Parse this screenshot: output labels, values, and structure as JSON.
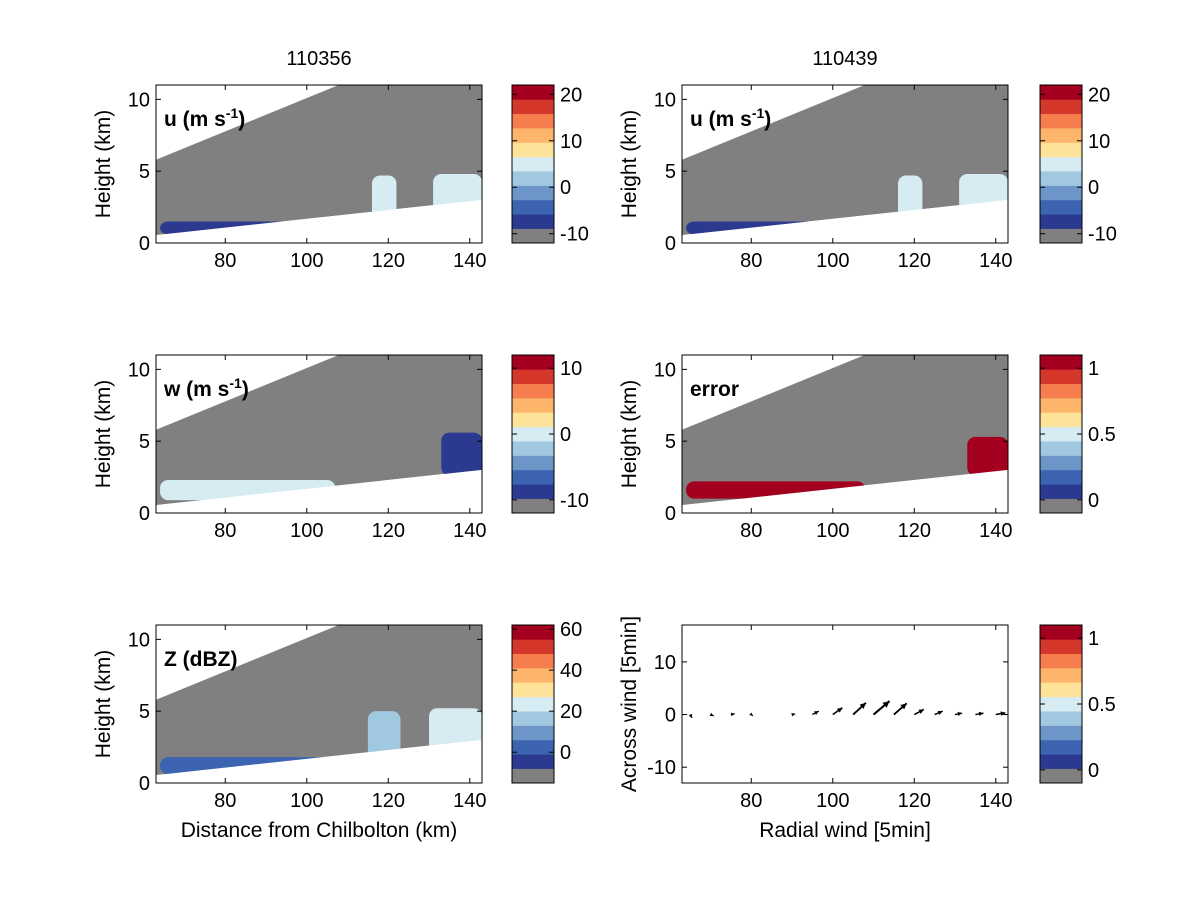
{
  "figure": {
    "titles": [
      "110356",
      "110439"
    ]
  },
  "colors": {
    "scale": [
      "#808080",
      "#2b3a8f",
      "#3d64b0",
      "#6c96c7",
      "#a0c8e0",
      "#d6ebf2",
      "#fde39a",
      "#fdb46b",
      "#f57d4e",
      "#d6372b",
      "#a3001f"
    ],
    "gray_region": "#808080"
  },
  "chart_data": [
    {
      "type": "heatmap",
      "panel": "top-left",
      "title": "110356",
      "label": "u (m s",
      "label_sup": "-1",
      "label_end": ")",
      "ylabel": "Height (km)",
      "xlabel": "",
      "xlim": [
        63,
        143
      ],
      "ylim": [
        0,
        11
      ],
      "xticks": [
        80,
        100,
        120,
        140
      ],
      "yticks": [
        0,
        5,
        10
      ],
      "colorbar": {
        "ticks": [
          "20",
          "10",
          "0",
          "-10"
        ],
        "range": [
          -12,
          22
        ]
      },
      "features": [
        {
          "name": "u-low-band",
          "x": [
            64,
            112
          ],
          "y": [
            0.6,
            1.5
          ],
          "value": -6
        },
        {
          "name": "u-plume-118",
          "x": [
            116,
            122
          ],
          "y": [
            1.7,
            4.7
          ],
          "value": 6
        },
        {
          "name": "u-cloud-135",
          "x": [
            131,
            143
          ],
          "y": [
            1.9,
            4.8
          ],
          "value": 6
        }
      ]
    },
    {
      "type": "heatmap",
      "panel": "top-right",
      "title": "110439",
      "label": "u (m s",
      "label_sup": "-1",
      "label_end": ")",
      "ylabel": "Height (km)",
      "xlabel": "",
      "xlim": [
        63,
        143
      ],
      "ylim": [
        0,
        11
      ],
      "xticks": [
        80,
        100,
        120,
        140
      ],
      "yticks": [
        0,
        5,
        10
      ],
      "colorbar": {
        "ticks": [
          "20",
          "10",
          "0",
          "-10"
        ],
        "range": [
          -12,
          22
        ]
      },
      "features": [
        {
          "name": "u-low-band",
          "x": [
            64,
            112
          ],
          "y": [
            0.6,
            1.5
          ],
          "value": -6
        },
        {
          "name": "u-plume-118",
          "x": [
            116,
            122
          ],
          "y": [
            1.7,
            4.7
          ],
          "value": 6
        },
        {
          "name": "u-cloud-135",
          "x": [
            131,
            143
          ],
          "y": [
            1.9,
            4.8
          ],
          "value": 6
        }
      ]
    },
    {
      "type": "heatmap",
      "panel": "middle-left",
      "label": "w (m s",
      "label_sup": "-1",
      "label_end": ")",
      "ylabel": "Height (km)",
      "xlabel": "",
      "xlim": [
        63,
        143
      ],
      "ylim": [
        0,
        11
      ],
      "xticks": [
        80,
        100,
        120,
        140
      ],
      "yticks": [
        0,
        5,
        10
      ],
      "colorbar": {
        "ticks": [
          "10",
          "0",
          "-10"
        ],
        "range": [
          -12,
          12
        ]
      },
      "features": [
        {
          "name": "w-low-band",
          "x": [
            64,
            107
          ],
          "y": [
            0.9,
            2.3
          ],
          "value": 1
        },
        {
          "name": "w-cloud-135",
          "x": [
            133,
            143
          ],
          "y": [
            2.6,
            5.6
          ],
          "value": -8
        }
      ]
    },
    {
      "type": "heatmap",
      "panel": "middle-right",
      "label": "error",
      "ylabel": "Height (km)",
      "xlabel": "",
      "xlim": [
        63,
        143
      ],
      "ylim": [
        0,
        11
      ],
      "xticks": [
        80,
        100,
        120,
        140
      ],
      "yticks": [
        0,
        5,
        10
      ],
      "colorbar": {
        "ticks": [
          "1",
          "0.5",
          "0"
        ],
        "range": [
          -0.1,
          1.1
        ]
      },
      "features": [
        {
          "name": "error-low-band",
          "x": [
            64,
            108
          ],
          "y": [
            1.0,
            2.2
          ],
          "value": 1
        },
        {
          "name": "error-cloud-135",
          "x": [
            133,
            143
          ],
          "y": [
            2.6,
            5.3
          ],
          "value": 1
        }
      ]
    },
    {
      "type": "heatmap",
      "panel": "bottom-left",
      "label": "Z (dBZ)",
      "ylabel": "Height (km)",
      "xlabel": "Distance from Chilbolton (km)",
      "xlim": [
        63,
        143
      ],
      "ylim": [
        0,
        11
      ],
      "xticks": [
        80,
        100,
        120,
        140
      ],
      "yticks": [
        0,
        5,
        10
      ],
      "colorbar": {
        "ticks": [
          "60",
          "40",
          "20",
          "0"
        ],
        "range": [
          -15,
          62
        ]
      },
      "features": [
        {
          "name": "z-low-band",
          "x": [
            64,
            143
          ],
          "y": [
            0.6,
            1.8
          ],
          "value": 5
        },
        {
          "name": "z-plume-118",
          "x": [
            115,
            123
          ],
          "y": [
            1.7,
            5.0
          ],
          "value": 15
        },
        {
          "name": "z-cloud-135",
          "x": [
            130,
            143
          ],
          "y": [
            1.9,
            5.2
          ],
          "value": 22
        }
      ]
    },
    {
      "type": "quiver",
      "panel": "bottom-right",
      "ylabel": "Across wind [5min]",
      "xlabel": "Radial wind [5min]",
      "xlim": [
        63,
        143
      ],
      "ylim": [
        -13,
        17
      ],
      "xticks": [
        80,
        100,
        120,
        140
      ],
      "yticks": [
        -10,
        0,
        10
      ],
      "colorbar": {
        "ticks": [
          "1",
          "0.5",
          "0"
        ],
        "range": [
          -0.1,
          1.1
        ]
      },
      "arrows": [
        {
          "x": 65,
          "u": 0.6,
          "v": -1.2
        },
        {
          "x": 70,
          "u": 1.0,
          "v": -0.5
        },
        {
          "x": 75,
          "u": 1.2,
          "v": 0.3
        },
        {
          "x": 80,
          "u": 0.5,
          "v": -0.5
        },
        {
          "x": 90,
          "u": 1.0,
          "v": 0.2
        },
        {
          "x": 95,
          "u": 2.0,
          "v": 1.2
        },
        {
          "x": 100,
          "u": 3.0,
          "v": 2.4
        },
        {
          "x": 105,
          "u": 4.0,
          "v": 4.2
        },
        {
          "x": 110,
          "u": 5.0,
          "v": 4.8
        },
        {
          "x": 115,
          "u": 4.0,
          "v": 4.0
        },
        {
          "x": 120,
          "u": 3.0,
          "v": 1.8
        },
        {
          "x": 125,
          "u": 2.5,
          "v": 1.2
        },
        {
          "x": 130,
          "u": 2.2,
          "v": 0.5
        },
        {
          "x": 135,
          "u": 2.5,
          "v": 0.5
        },
        {
          "x": 140,
          "u": 3.0,
          "v": 0.6
        }
      ]
    }
  ]
}
